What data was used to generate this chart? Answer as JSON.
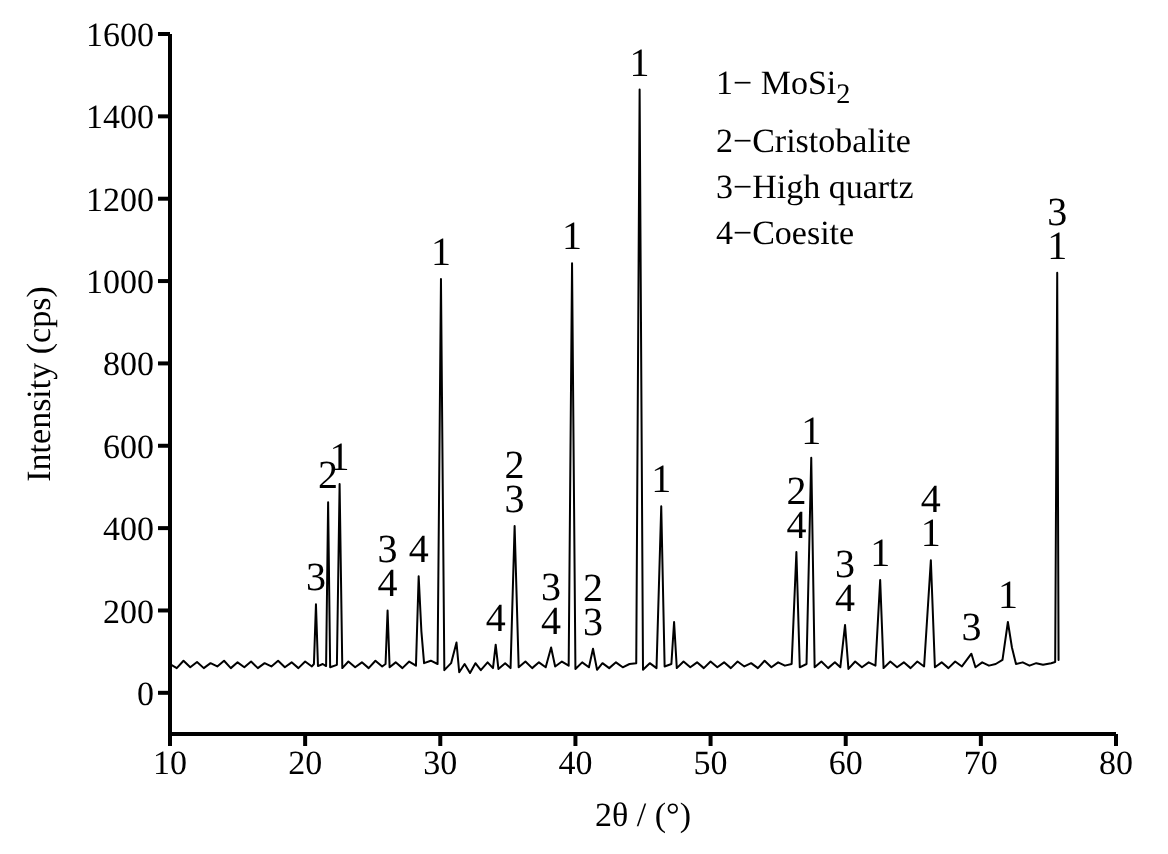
{
  "chart_data": {
    "type": "line",
    "xlabel": "2θ / (°)",
    "ylabel": "Intensity (cps)",
    "xlim": [
      10,
      80
    ],
    "xticks": [
      10,
      20,
      30,
      40,
      50,
      60,
      70,
      80
    ],
    "ylim": [
      -100,
      1600
    ],
    "yticks": [
      0,
      200,
      400,
      600,
      800,
      1000,
      1200,
      1400,
      1600
    ],
    "grid": false,
    "marker": "none",
    "line_style": "solid",
    "x": [
      10,
      10.5,
      11,
      11.5,
      12,
      12.5,
      13,
      13.5,
      14,
      14.5,
      15,
      15.5,
      16,
      16.5,
      17,
      17.5,
      18,
      18.5,
      19,
      19.5,
      20,
      20.5,
      20.65,
      20.8,
      20.95,
      21.3,
      21.55,
      21.7,
      21.85,
      22.35,
      22.55,
      22.75,
      23.2,
      23.7,
      24.2,
      24.7,
      25.2,
      25.7,
      25.95,
      26.1,
      26.25,
      26.7,
      27.2,
      27.7,
      28.2,
      28.4,
      28.6,
      28.8,
      29.3,
      29.8,
      30.05,
      30.3,
      30.8,
      31.2,
      31.4,
      31.8,
      32.2,
      32.6,
      33,
      33.5,
      33.9,
      34.1,
      34.3,
      34.8,
      35.2,
      35.5,
      35.8,
      36.3,
      36.8,
      37.3,
      37.8,
      38.2,
      38.5,
      39,
      39.5,
      39.75,
      40,
      40.5,
      41,
      41.3,
      41.6,
      42,
      42.5,
      43,
      43.5,
      44,
      44.5,
      44.75,
      45,
      45.5,
      46,
      46.35,
      46.6,
      47.1,
      47.3,
      47.5,
      48,
      48.5,
      49,
      49.5,
      50,
      50.5,
      51,
      51.5,
      52,
      52.5,
      53,
      53.5,
      54,
      54.5,
      55,
      55.5,
      56,
      56.35,
      56.6,
      57.1,
      57.45,
      57.7,
      58.2,
      58.7,
      59.2,
      59.6,
      59.95,
      60.2,
      60.7,
      61.2,
      61.7,
      62.2,
      62.55,
      62.8,
      63.3,
      63.8,
      64.3,
      64.8,
      65.3,
      65.8,
      66.3,
      66.6,
      67.1,
      67.6,
      68.1,
      68.6,
      69.3,
      69.6,
      70.1,
      70.6,
      71.1,
      71.6,
      72,
      72.3,
      72.6,
      73.1,
      73.6,
      74.1,
      74.6,
      75.2,
      75.5,
      75.65,
      75.75
    ],
    "series": [
      {
        "color": "#000000",
        "values": [
          70,
          60,
          78,
          62,
          75,
          60,
          72,
          64,
          78,
          60,
          74,
          62,
          76,
          60,
          72,
          64,
          78,
          62,
          74,
          60,
          76,
          64,
          70,
          215,
          65,
          70,
          65,
          463,
          62,
          68,
          507,
          60,
          76,
          62,
          74,
          60,
          78,
          64,
          70,
          200,
          62,
          74,
          60,
          76,
          66,
          283,
          150,
          72,
          78,
          70,
          1005,
          55,
          72,
          122,
          50,
          70,
          48,
          72,
          55,
          74,
          60,
          117,
          58,
          72,
          60,
          405,
          62,
          76,
          60,
          74,
          62,
          110,
          64,
          76,
          66,
          1043,
          58,
          74,
          62,
          107,
          56,
          72,
          60,
          74,
          62,
          70,
          72,
          1465,
          56,
          72,
          60,
          453,
          64,
          70,
          172,
          60,
          76,
          62,
          74,
          60,
          76,
          62,
          74,
          60,
          76,
          64,
          72,
          60,
          78,
          62,
          74,
          66,
          70,
          342,
          62,
          70,
          571,
          62,
          76,
          60,
          74,
          62,
          165,
          58,
          76,
          62,
          74,
          66,
          274,
          60,
          76,
          62,
          74,
          60,
          76,
          64,
          322,
          62,
          74,
          60,
          76,
          64,
          95,
          62,
          74,
          66,
          70,
          80,
          172,
          110,
          70,
          74,
          66,
          72,
          68,
          72,
          75,
          1020,
          80
        ]
      }
    ],
    "annotations": [
      {
        "text": "1",
        "x": 22.55,
        "y": 507
      },
      {
        "text": "2",
        "x": 21.7,
        "y": 463
      },
      {
        "text": "3",
        "x": 20.8,
        "y": 215
      },
      {
        "text": "3",
        "x": 26.1,
        "y": 200
      },
      {
        "text": "4",
        "x": 26.1,
        "y": 200
      },
      {
        "text": "4",
        "x": 28.4,
        "y": 283
      },
      {
        "text": "1",
        "x": 30.05,
        "y": 1005
      },
      {
        "text": "4",
        "x": 34.1,
        "y": 117
      },
      {
        "text": "2",
        "x": 35.5,
        "y": 405
      },
      {
        "text": "3",
        "x": 35.5,
        "y": 405
      },
      {
        "text": "3",
        "x": 38.2,
        "y": 110
      },
      {
        "text": "4",
        "x": 38.2,
        "y": 110
      },
      {
        "text": "1",
        "x": 39.75,
        "y": 1043
      },
      {
        "text": "2",
        "x": 41.3,
        "y": 107
      },
      {
        "text": "3",
        "x": 41.3,
        "y": 107
      },
      {
        "text": "1",
        "x": 44.75,
        "y": 1465
      },
      {
        "text": "1",
        "x": 46.35,
        "y": 453
      },
      {
        "text": "2",
        "x": 56.35,
        "y": 342
      },
      {
        "text": "4",
        "x": 56.35,
        "y": 342
      },
      {
        "text": "1",
        "x": 57.45,
        "y": 571
      },
      {
        "text": "3",
        "x": 59.95,
        "y": 165
      },
      {
        "text": "4",
        "x": 59.95,
        "y": 165
      },
      {
        "text": "1",
        "x": 62.55,
        "y": 274
      },
      {
        "text": "4",
        "x": 66.3,
        "y": 322
      },
      {
        "text": "1",
        "x": 66.3,
        "y": 322
      },
      {
        "text": "3",
        "x": 69.3,
        "y": 95
      },
      {
        "text": "1",
        "x": 72,
        "y": 172
      },
      {
        "text": "3",
        "x": 75.65,
        "y": 1020
      },
      {
        "text": "1",
        "x": 75.65,
        "y": 1020
      },
      "1− MoSi$_{2}$",
      "2−Cristobalite",
      "3−High quartz",
      "4−Coesite"
    ]
  }
}
